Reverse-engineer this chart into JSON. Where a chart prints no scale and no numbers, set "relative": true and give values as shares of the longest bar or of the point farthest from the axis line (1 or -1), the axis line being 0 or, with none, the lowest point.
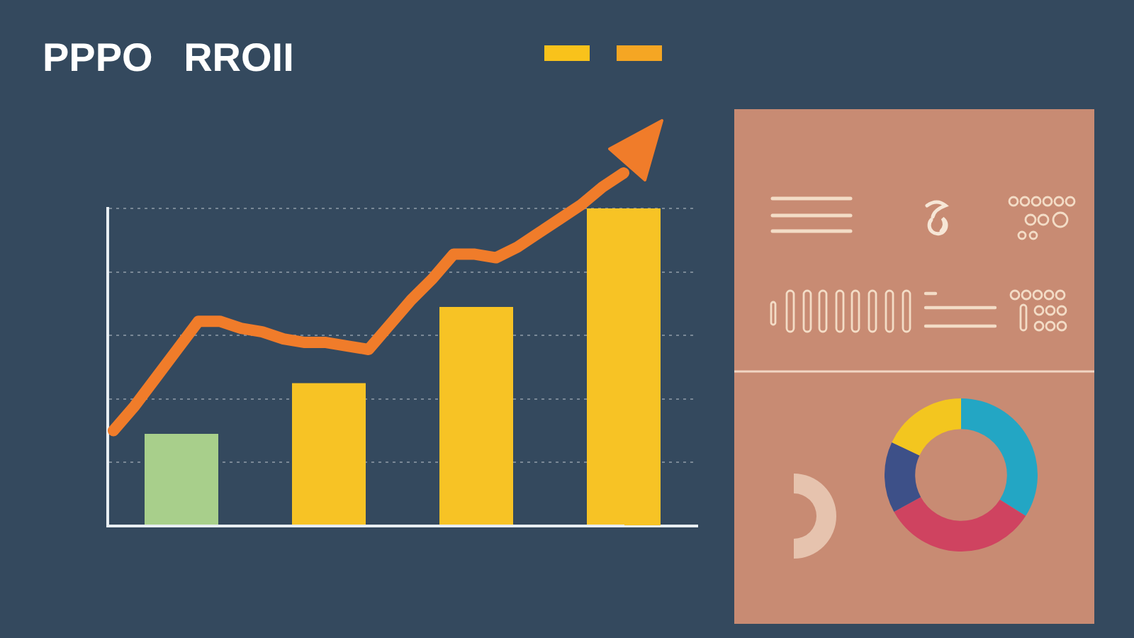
{
  "chart_data": [
    {
      "type": "bar",
      "title": "PPPO RROII",
      "categories": [
        null,
        null,
        null,
        null
      ],
      "values": [
        0.29,
        0.45,
        0.69,
        1
      ],
      "colors": [
        "#a8cf8b",
        "#f7c325",
        "#f7c325",
        "#f7c325"
      ],
      "relative": true,
      "grid": "y"
    },
    {
      "type": "line",
      "categories": [
        null,
        null,
        null,
        null,
        null,
        null,
        null,
        null,
        null,
        null,
        null,
        null,
        null,
        null,
        null,
        null,
        null,
        null,
        null,
        null,
        null,
        null,
        null,
        null,
        null
      ],
      "values": [
        0.27,
        0.34,
        0.42,
        0.5,
        0.58,
        0.58,
        0.56,
        0.55,
        0.53,
        0.52,
        0.52,
        0.51,
        0.5,
        0.57,
        0.64,
        0.7,
        0.77,
        0.77,
        0.76,
        0.79,
        0.83,
        0.87,
        0.91,
        0.96,
        1
      ],
      "color": "#f07c2a",
      "relative": true
    },
    {
      "type": "donut",
      "categories": [
        null,
        null,
        null,
        null
      ],
      "values": [
        34,
        33,
        15,
        18
      ],
      "colors": [
        "#23a6c4",
        "#cf4360",
        "#3d5088",
        "#f3c61f"
      ]
    }
  ]
}
